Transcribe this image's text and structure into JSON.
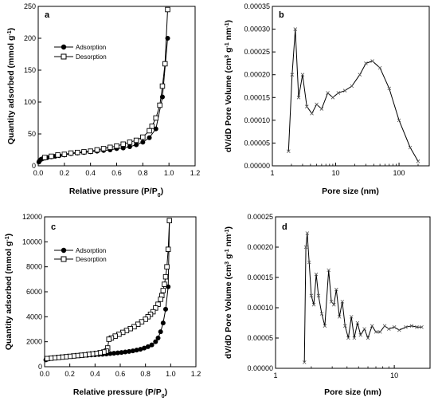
{
  "chart_data": [
    {
      "panel": "a",
      "type": "line",
      "xlabel": "Relative pressure (P/P0)",
      "ylabel": "Quantity adsorbed (mmol g-1)",
      "xlim": [
        0,
        1.2
      ],
      "ylim": [
        0,
        250
      ],
      "x_ticks": [
        "0.0",
        "0.2",
        "0.4",
        "0.6",
        "0.8",
        "1.0",
        "1.2"
      ],
      "y_ticks": [
        "0",
        "50",
        "100",
        "150",
        "200",
        "250"
      ],
      "legend_position": "upper-left",
      "series": [
        {
          "name": "Adsorption",
          "marker": "filled-circle",
          "x": [
            0.005,
            0.01,
            0.02,
            0.03,
            0.05,
            0.07,
            0.1,
            0.13,
            0.16,
            0.2,
            0.25,
            0.3,
            0.35,
            0.4,
            0.45,
            0.5,
            0.55,
            0.6,
            0.65,
            0.7,
            0.75,
            0.8,
            0.85,
            0.9,
            0.95,
            0.99
          ],
          "y": [
            6,
            8,
            10,
            11,
            12,
            13,
            14,
            15,
            16,
            17,
            19,
            20,
            21,
            22,
            23,
            24,
            25,
            27,
            28,
            30,
            33,
            37,
            44,
            58,
            108,
            200
          ]
        },
        {
          "name": "Desorption",
          "marker": "open-square",
          "x": [
            0.99,
            0.97,
            0.95,
            0.93,
            0.9,
            0.87,
            0.85,
            0.8,
            0.75,
            0.7,
            0.65,
            0.6,
            0.55,
            0.5,
            0.45,
            0.4,
            0.35,
            0.3,
            0.25,
            0.2,
            0.15,
            0.1,
            0.05
          ],
          "y": [
            245,
            160,
            125,
            95,
            75,
            62,
            55,
            45,
            40,
            37,
            34,
            31,
            29,
            27,
            25,
            23,
            22,
            21,
            20,
            18,
            17,
            15,
            13
          ]
        }
      ]
    },
    {
      "panel": "b",
      "type": "line",
      "xlabel": "Pore size (nm)",
      "ylabel": "dV/dD Pore Volume (cm3 g-1 nm-1)",
      "xscale": "log",
      "xlim": [
        1,
        300
      ],
      "ylim": [
        0,
        0.00035
      ],
      "x_ticks": [
        "1",
        "10",
        "100"
      ],
      "y_ticks": [
        "0.00000",
        "0.00005",
        "0.00010",
        "0.00015",
        "0.00020",
        "0.00025",
        "0.00030",
        "0.00035"
      ],
      "series": [
        {
          "marker": "x",
          "x": [
            1.8,
            2.05,
            2.3,
            2.6,
            3.0,
            3.5,
            4.2,
            5.0,
            6.0,
            7.5,
            9.0,
            11,
            14,
            18,
            24,
            30,
            38,
            50,
            70,
            100,
            150,
            200
          ],
          "y": [
            3.2e-05,
            0.0002,
            0.0003,
            0.00015,
            0.0002,
            0.00013,
            0.000115,
            0.000135,
            0.000125,
            0.00016,
            0.00015,
            0.00016,
            0.000165,
            0.000175,
            0.0002,
            0.000225,
            0.00023,
            0.000215,
            0.00017,
            0.0001,
            4e-05,
            1e-05
          ]
        }
      ]
    },
    {
      "panel": "c",
      "type": "line",
      "xlabel": "Relative pressure (P/P0)",
      "ylabel": "Quantity adsorbed (mmol g-1)",
      "xlim": [
        0,
        1.2
      ],
      "ylim": [
        0,
        12000
      ],
      "x_ticks": [
        "0.0",
        "0.2",
        "0.4",
        "0.6",
        "0.8",
        "1.0",
        "1.2"
      ],
      "y_ticks": [
        "0",
        "2000",
        "4000",
        "6000",
        "8000",
        "10000",
        "12000"
      ],
      "legend_position": "upper-left",
      "series": [
        {
          "name": "Adsorption",
          "marker": "filled-circle",
          "x": [
            0.01,
            0.02,
            0.04,
            0.06,
            0.08,
            0.1,
            0.13,
            0.16,
            0.19,
            0.22,
            0.25,
            0.28,
            0.31,
            0.34,
            0.37,
            0.4,
            0.43,
            0.46,
            0.49,
            0.52,
            0.55,
            0.58,
            0.61,
            0.64,
            0.67,
            0.7,
            0.73,
            0.76,
            0.79,
            0.82,
            0.85,
            0.88,
            0.9,
            0.92,
            0.94,
            0.96,
            0.98,
            0.99
          ],
          "y": [
            550,
            600,
            650,
            690,
            720,
            750,
            780,
            800,
            820,
            840,
            860,
            880,
            900,
            920,
            940,
            960,
            980,
            1000,
            1020,
            1050,
            1080,
            1110,
            1140,
            1180,
            1220,
            1270,
            1330,
            1400,
            1490,
            1600,
            1750,
            2000,
            2300,
            2800,
            3500,
            4600,
            6400,
            11700
          ]
        },
        {
          "name": "Desorption",
          "marker": "open-square",
          "x": [
            0.99,
            0.98,
            0.97,
            0.96,
            0.95,
            0.94,
            0.93,
            0.92,
            0.9,
            0.88,
            0.86,
            0.84,
            0.82,
            0.8,
            0.77,
            0.74,
            0.71,
            0.68,
            0.65,
            0.62,
            0.59,
            0.56,
            0.53,
            0.51,
            0.5,
            0.49,
            0.47,
            0.44,
            0.41,
            0.38,
            0.35,
            0.32,
            0.29,
            0.26,
            0.23,
            0.2,
            0.17,
            0.14,
            0.11,
            0.08,
            0.05,
            0.02
          ],
          "y": [
            11700,
            9400,
            8000,
            7200,
            6600,
            6100,
            5700,
            5400,
            5000,
            4700,
            4400,
            4200,
            4000,
            3800,
            3600,
            3400,
            3200,
            3050,
            2900,
            2750,
            2600,
            2450,
            2300,
            2200,
            1500,
            1250,
            1180,
            1120,
            1070,
            1030,
            990,
            950,
            920,
            890,
            860,
            830,
            800,
            770,
            740,
            710,
            680,
            650
          ]
        }
      ]
    },
    {
      "panel": "d",
      "type": "line",
      "xlabel": "Pore size (nm)",
      "ylabel": "dV/dD Pore Volume (cm3 g-1 nm-1)",
      "xscale": "log",
      "xlim": [
        1,
        20
      ],
      "ylim": [
        0,
        0.00025
      ],
      "x_ticks": [
        "1",
        "10"
      ],
      "y_ticks": [
        "0.00000",
        "0.00005",
        "0.00010",
        "0.00015",
        "0.00020",
        "0.00025"
      ],
      "series": [
        {
          "marker": "x",
          "x": [
            1.75,
            1.8,
            1.85,
            1.92,
            2.0,
            2.1,
            2.2,
            2.3,
            2.45,
            2.6,
            2.8,
            2.95,
            3.1,
            3.25,
            3.45,
            3.65,
            3.85,
            4.1,
            4.35,
            4.6,
            4.9,
            5.2,
            5.6,
            6.0,
            6.5,
            7.0,
            7.6,
            8.3,
            9.0,
            10,
            11,
            12.5,
            14,
            15.5,
            17
          ],
          "y": [
            1e-05,
            0.0002,
            0.000223,
            0.000175,
            0.00012,
            0.000105,
            0.000155,
            0.00012,
            9e-05,
            7e-05,
            0.000162,
            0.00011,
            0.000105,
            0.00013,
            8.5e-05,
            0.00011,
            7e-05,
            5e-05,
            8.5e-05,
            5e-05,
            7.5e-05,
            5.5e-05,
            6.5e-05,
            5e-05,
            7e-05,
            6e-05,
            6e-05,
            7e-05,
            6.5e-05,
            6.8e-05,
            6.3e-05,
            6.8e-05,
            7e-05,
            6.8e-05,
            6.8e-05
          ]
        }
      ]
    }
  ],
  "panel_letters": [
    "a",
    "b",
    "c",
    "d"
  ],
  "labels": {
    "rel_pressure": "Relative pressure (P/P",
    "rel_sub": "0",
    "rel_close": ")",
    "qty_a": "Quantity adsorbed (mmol g",
    "qty_sup": "-1",
    "qty_close": ")",
    "pore_size": "Pore size (nm)",
    "dv_main": "dV/dD Pore Volume (cm",
    "dv_3": "3",
    "dv_g": " g",
    "dv_m1": "-1",
    "dv_nm": " nm",
    "dv_m1b": "-1",
    "dv_close": ")",
    "adsorption": "Adsorption",
    "desorption": "Desorption"
  }
}
